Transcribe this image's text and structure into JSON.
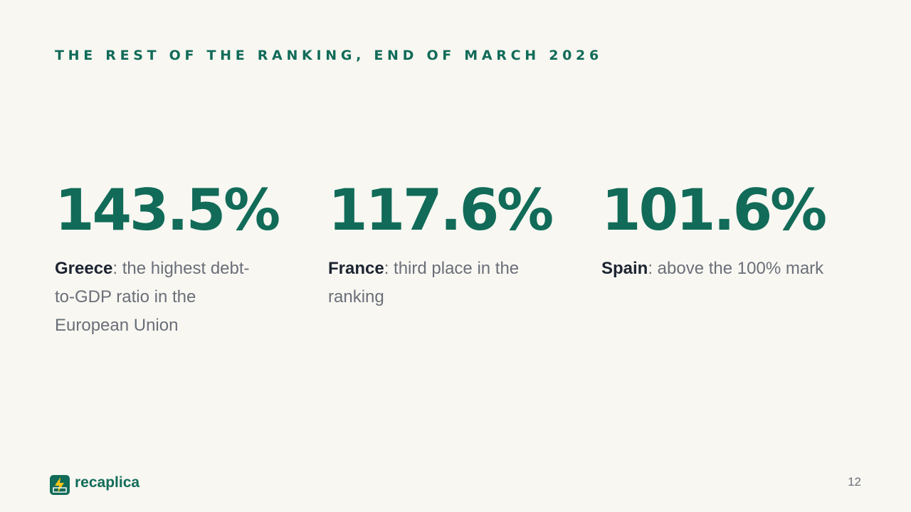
{
  "slide": {
    "heading": "THE REST OF THE RANKING, END OF MARCH 2026",
    "stats": [
      {
        "value": "143.5%",
        "country": "Greece",
        "description": ": the highest debt-to-GDP ratio in the European Union"
      },
      {
        "value": "117.6%",
        "country": "France",
        "description": ": third place in the ranking"
      },
      {
        "value": "101.6%",
        "country": "Spain",
        "description": ": above the 100% mark"
      }
    ]
  },
  "footer": {
    "brand": "recaplica",
    "logo_icon": "lightning-bolt-icon",
    "page_number": "12"
  },
  "colors": {
    "background": "#f8f7f2",
    "accent": "#116b58",
    "bolt": "#f5c518",
    "text_dark": "#1d2431",
    "text_muted": "#6a6f78"
  }
}
